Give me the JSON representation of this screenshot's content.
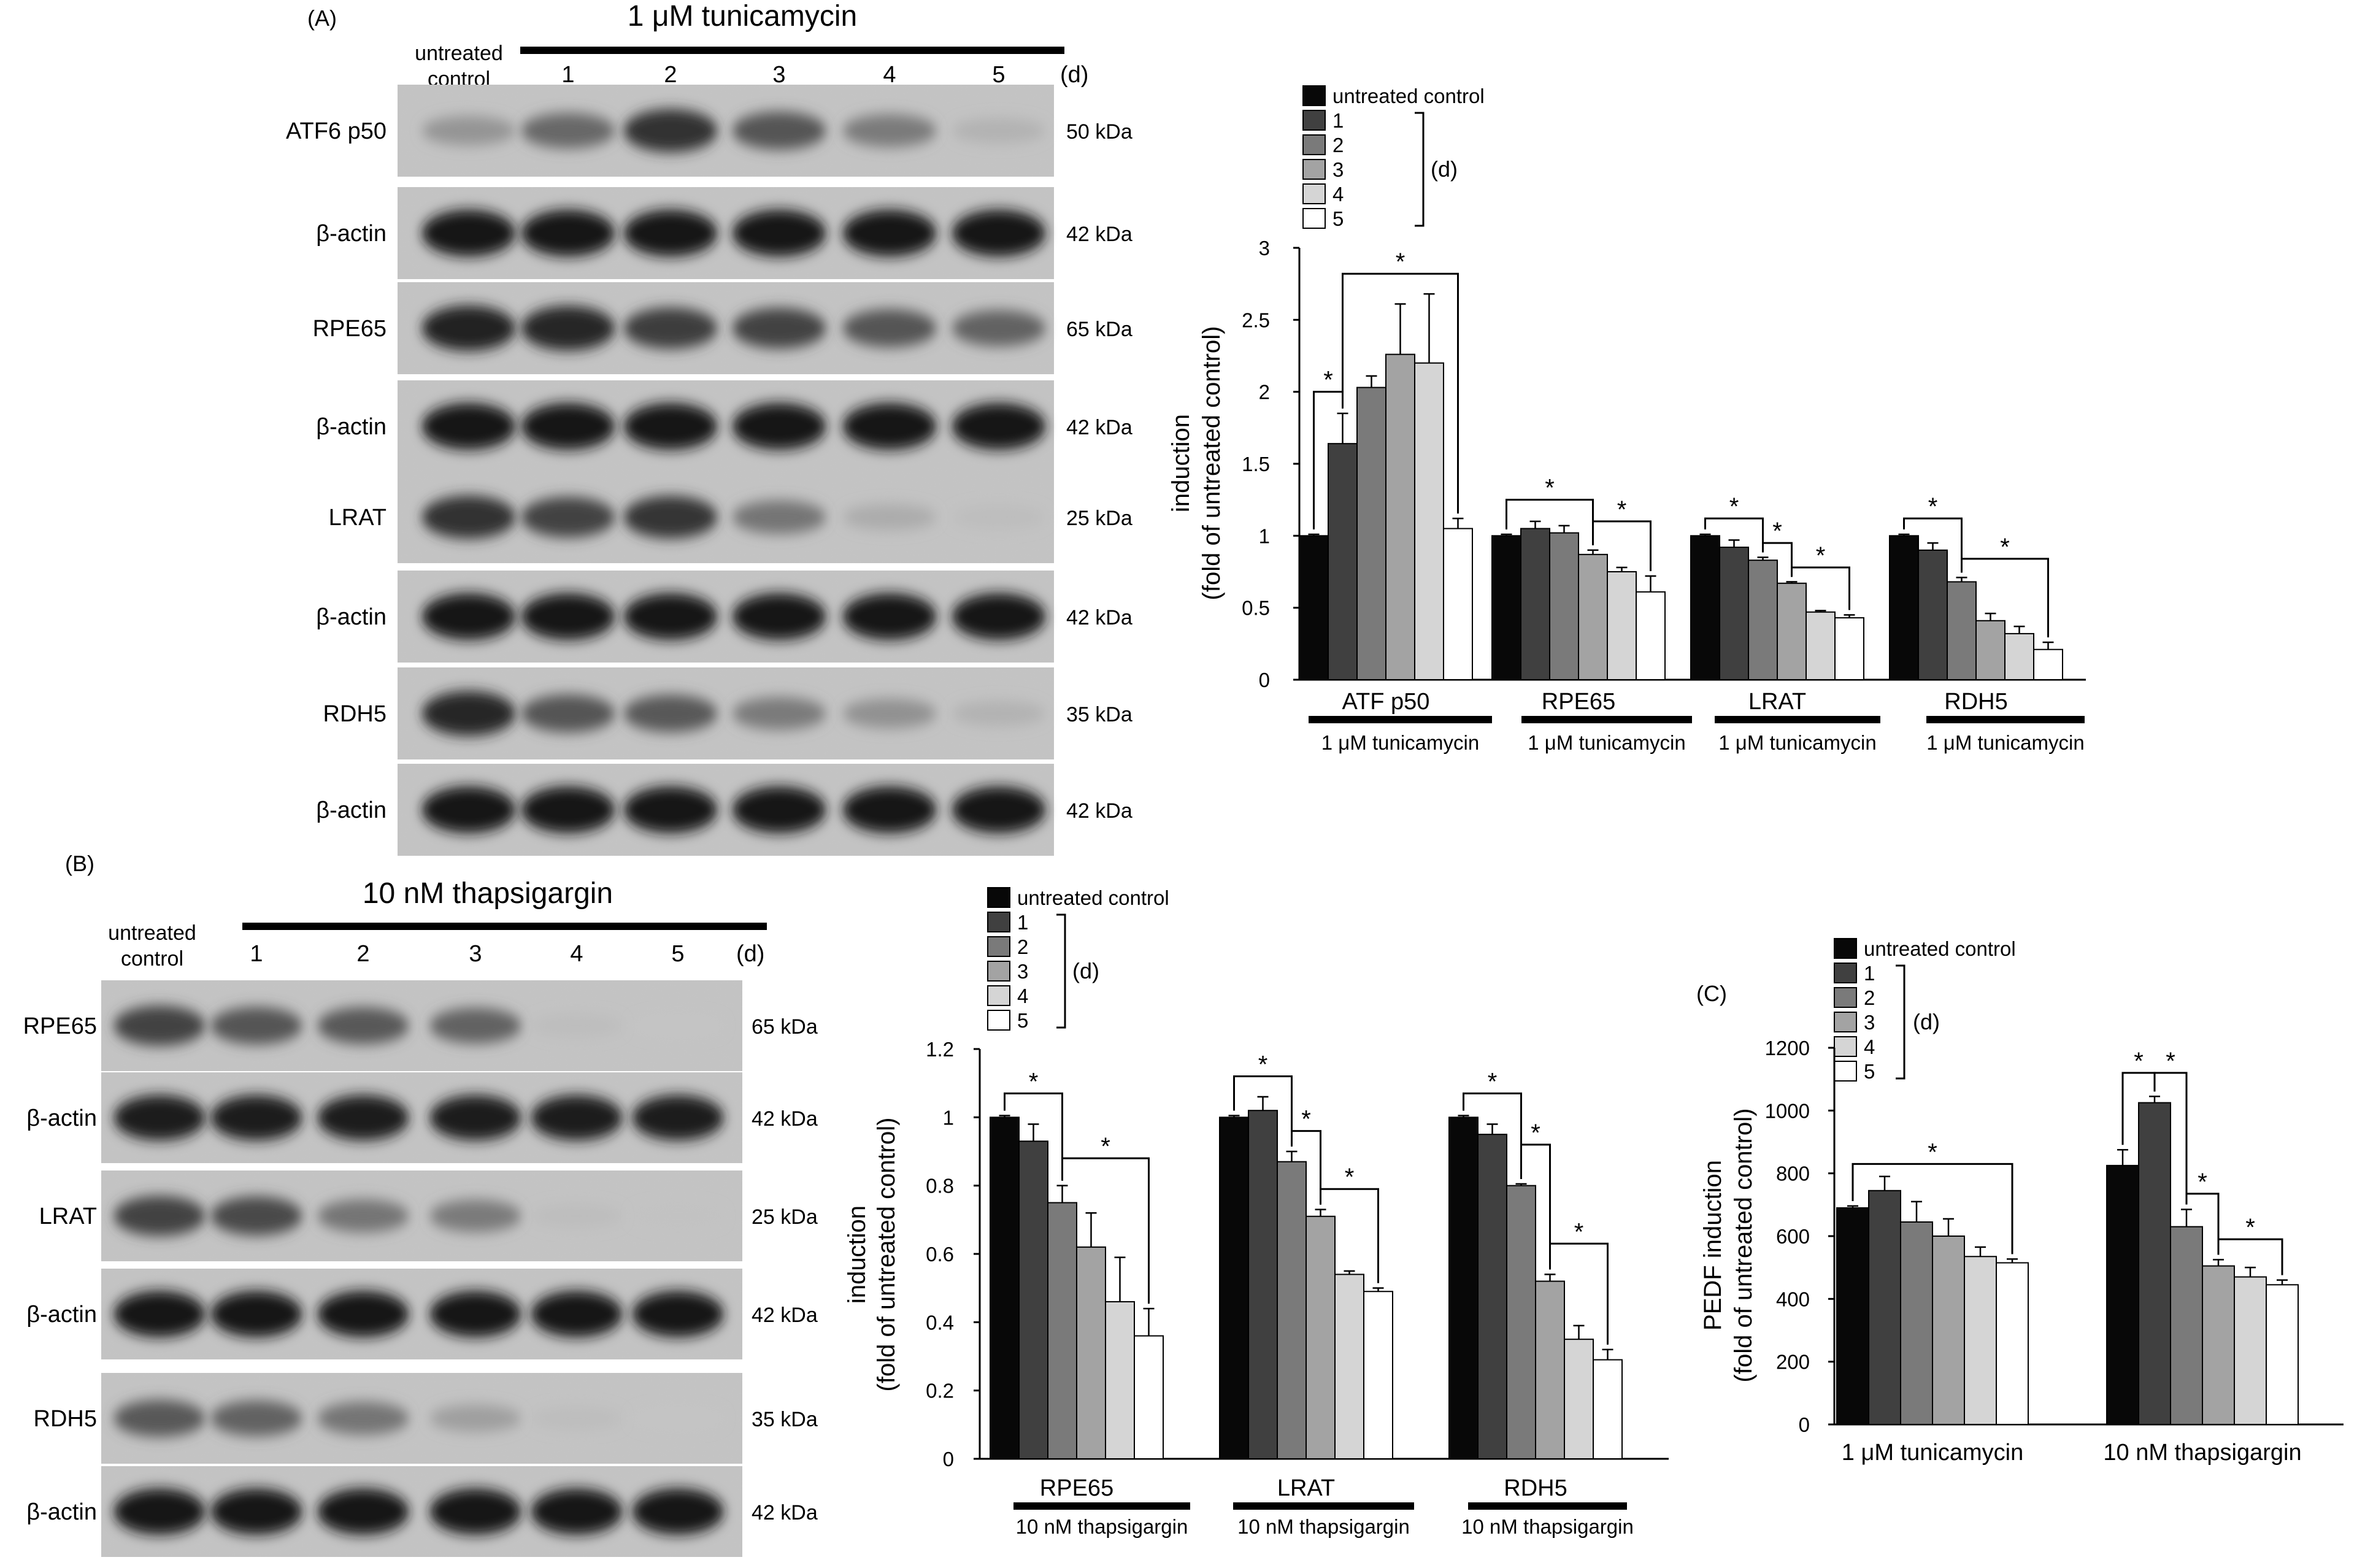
{
  "colors": {
    "untreated control": "#080808",
    "1": "#404040",
    "2": "#7a7a7a",
    "3": "#a3a3a3",
    "4": "#d5d5d5",
    "5": "#ffffff"
  },
  "legend": {
    "items": [
      "untreated control",
      "1",
      "2",
      "3",
      "4",
      "5"
    ],
    "days_unit": "(d)"
  },
  "blots": [
    {
      "id": "A",
      "panel_label": "(A)",
      "treatment": "1 μM tunicamycin",
      "control_label": [
        "untreated",
        "control"
      ],
      "lanes": [
        "1",
        "2",
        "3",
        "4",
        "5"
      ],
      "days_unit": "(d)",
      "rows": [
        {
          "protein": "ATF6 p50",
          "kda": "50 kDa",
          "intensity": [
            0.28,
            0.52,
            0.82,
            0.62,
            0.42,
            0.12
          ]
        },
        {
          "protein": "β-actin",
          "kda": "42 kDa",
          "intensity": [
            0.95,
            0.95,
            0.95,
            0.95,
            0.95,
            0.95
          ]
        },
        {
          "protein": "RPE65",
          "kda": "65 kDa",
          "intensity": [
            0.9,
            0.88,
            0.75,
            0.72,
            0.62,
            0.55
          ]
        },
        {
          "protein": "β-actin",
          "kda": "42 kDa",
          "intensity": [
            0.95,
            0.95,
            0.95,
            0.95,
            0.95,
            0.95
          ]
        },
        {
          "protein": "LRAT",
          "kda": "25 kDa",
          "intensity": [
            0.82,
            0.72,
            0.8,
            0.45,
            0.15,
            0.06
          ]
        },
        {
          "protein": "β-actin",
          "kda": "42 kDa",
          "intensity": [
            0.95,
            0.95,
            0.95,
            0.95,
            0.95,
            0.95
          ]
        },
        {
          "protein": "RDH5",
          "kda": "35 kDa",
          "intensity": [
            0.88,
            0.62,
            0.6,
            0.42,
            0.3,
            0.12
          ]
        },
        {
          "protein": "β-actin",
          "kda": "42 kDa",
          "intensity": [
            0.95,
            0.95,
            0.95,
            0.95,
            0.95,
            0.95
          ]
        }
      ]
    },
    {
      "id": "B",
      "panel_label": "(B)",
      "treatment": "10 nM thapsigargin",
      "control_label": [
        "untreated",
        "control"
      ],
      "lanes": [
        "1",
        "2",
        "3",
        "4",
        "5"
      ],
      "days_unit": "(d)",
      "rows": [
        {
          "protein": "RPE65",
          "kda": "65 kDa",
          "intensity": [
            0.72,
            0.62,
            0.6,
            0.55,
            0.06,
            0.02
          ]
        },
        {
          "protein": "β-actin",
          "kda": "42 kDa",
          "intensity": [
            0.92,
            0.92,
            0.92,
            0.92,
            0.92,
            0.92
          ]
        },
        {
          "protein": "LRAT",
          "kda": "25 kDa",
          "intensity": [
            0.72,
            0.68,
            0.45,
            0.42,
            0.06,
            0.03
          ]
        },
        {
          "protein": "β-actin",
          "kda": "42 kDa",
          "intensity": [
            0.95,
            0.95,
            0.95,
            0.95,
            0.95,
            0.95
          ]
        },
        {
          "protein": "RDH5",
          "kda": "35 kDa",
          "intensity": [
            0.6,
            0.55,
            0.45,
            0.22,
            0.06,
            0.02
          ]
        },
        {
          "protein": "β-actin",
          "kda": "42 kDa",
          "intensity": [
            0.95,
            0.95,
            0.95,
            0.95,
            0.95,
            0.95
          ]
        }
      ]
    }
  ],
  "chart_data": [
    {
      "id": "A",
      "type": "bar",
      "ylabel": [
        "induction",
        "(fold of untreated control)"
      ],
      "ylim": [
        0,
        3
      ],
      "yticks": [
        0,
        0.5,
        1,
        1.5,
        2,
        2.5,
        3
      ],
      "ytick_labels": [
        "0",
        "0.5",
        "1",
        "1.5",
        "2",
        "2.5",
        "3"
      ],
      "series": [
        "untreated control",
        "1",
        "2",
        "3",
        "4",
        "5"
      ],
      "groups": [
        {
          "label": "ATF p50",
          "sublabel": "1 μM tunicamycin",
          "values": [
            1.0,
            1.64,
            2.03,
            2.26,
            2.2,
            1.05
          ],
          "errors": [
            0.01,
            0.21,
            0.08,
            0.35,
            0.48,
            0.07
          ]
        },
        {
          "label": "RPE65",
          "sublabel": "1 μM tunicamycin",
          "values": [
            1.0,
            1.05,
            1.02,
            0.87,
            0.75,
            0.61
          ],
          "errors": [
            0.01,
            0.05,
            0.05,
            0.03,
            0.03,
            0.11
          ]
        },
        {
          "label": "LRAT",
          "sublabel": "1 μM tunicamycin",
          "values": [
            1.0,
            0.92,
            0.83,
            0.67,
            0.47,
            0.43
          ],
          "errors": [
            0.01,
            0.05,
            0.02,
            0.01,
            0.01,
            0.02
          ]
        },
        {
          "label": "RDH5",
          "sublabel": "1 μM tunicamycin",
          "values": [
            1.0,
            0.9,
            0.68,
            0.41,
            0.32,
            0.21
          ],
          "errors": [
            0.01,
            0.05,
            0.03,
            0.05,
            0.05,
            0.05
          ]
        }
      ],
      "significance": [
        {
          "group": 0,
          "from": 0,
          "to": 1,
          "y": 2.0,
          "label": "*"
        },
        {
          "group": 0,
          "from": 1,
          "to": 5,
          "y": 2.82,
          "label": "*"
        },
        {
          "group": 1,
          "from": 0,
          "to": 3,
          "y": 1.25,
          "label": "*"
        },
        {
          "group": 1,
          "from": 3,
          "to": 5,
          "y": 1.1,
          "label": "*"
        },
        {
          "group": 2,
          "from": 0,
          "to": 2,
          "y": 1.12,
          "label": "*"
        },
        {
          "group": 2,
          "from": 2,
          "to": 3,
          "y": 0.95,
          "label": "*"
        },
        {
          "group": 2,
          "from": 3,
          "to": 5,
          "y": 0.78,
          "label": "*"
        },
        {
          "group": 3,
          "from": 0,
          "to": 2,
          "y": 1.12,
          "label": "*"
        },
        {
          "group": 3,
          "from": 2,
          "to": 5,
          "y": 0.84,
          "label": "*"
        }
      ]
    },
    {
      "id": "B",
      "type": "bar",
      "ylabel": [
        "induction",
        "(fold of untreated control)"
      ],
      "ylim": [
        0,
        1.2
      ],
      "yticks": [
        0,
        0.2,
        0.4,
        0.6,
        0.8,
        1,
        1.2
      ],
      "ytick_labels": [
        "0",
        "0.2",
        "0.4",
        "0.6",
        "0.8",
        "1",
        "1.2"
      ],
      "series": [
        "untreated control",
        "1",
        "2",
        "3",
        "4",
        "5"
      ],
      "groups": [
        {
          "label": "RPE65",
          "sublabel": "10 nM thapsigargin",
          "values": [
            1.0,
            0.93,
            0.75,
            0.62,
            0.46,
            0.36
          ],
          "errors": [
            0.005,
            0.05,
            0.05,
            0.1,
            0.13,
            0.08
          ]
        },
        {
          "label": "LRAT",
          "sublabel": "10 nM thapsigargin",
          "values": [
            1.0,
            1.02,
            0.87,
            0.71,
            0.54,
            0.49
          ],
          "errors": [
            0.005,
            0.04,
            0.03,
            0.02,
            0.01,
            0.01
          ]
        },
        {
          "label": "RDH5",
          "sublabel": "10 nM thapsigargin",
          "values": [
            1.0,
            0.95,
            0.8,
            0.52,
            0.35,
            0.29
          ],
          "errors": [
            0.005,
            0.03,
            0.005,
            0.02,
            0.04,
            0.03
          ]
        }
      ],
      "significance": [
        {
          "group": 0,
          "from": 0,
          "to": 2,
          "y": 1.07,
          "label": "*"
        },
        {
          "group": 0,
          "from": 2,
          "to": 5,
          "y": 0.88,
          "label": "*"
        },
        {
          "group": 1,
          "from": 0,
          "to": 2,
          "y": 1.12,
          "label": "*"
        },
        {
          "group": 1,
          "from": 2,
          "to": 3,
          "y": 0.96,
          "label": "*"
        },
        {
          "group": 1,
          "from": 3,
          "to": 5,
          "y": 0.79,
          "label": "*"
        },
        {
          "group": 2,
          "from": 0,
          "to": 2,
          "y": 1.07,
          "label": "*"
        },
        {
          "group": 2,
          "from": 2,
          "to": 3,
          "y": 0.92,
          "label": "*"
        },
        {
          "group": 2,
          "from": 3,
          "to": 5,
          "y": 0.63,
          "label": "*"
        }
      ]
    },
    {
      "id": "C",
      "type": "bar",
      "panel_label": "(C)",
      "ylabel": [
        "PEDF induction",
        "(fold of untreated control)"
      ],
      "ylim": [
        0,
        1200
      ],
      "yticks": [
        0,
        200,
        400,
        600,
        800,
        1000,
        1200
      ],
      "ytick_labels": [
        "0",
        "200",
        "400",
        "600",
        "800",
        "1000",
        "1200"
      ],
      "series": [
        "untreated control",
        "1",
        "2",
        "3",
        "4",
        "5"
      ],
      "groups": [
        {
          "label": "1 μM tunicamycin",
          "sublabel": "",
          "values": [
            690,
            745,
            645,
            600,
            535,
            515
          ],
          "errors": [
            6,
            45,
            65,
            55,
            30,
            12
          ]
        },
        {
          "label": "10 nM thapsigargin",
          "sublabel": "",
          "values": [
            825,
            1025,
            630,
            505,
            470,
            445
          ],
          "errors": [
            50,
            20,
            55,
            20,
            30,
            15
          ]
        }
      ],
      "significance": [
        {
          "group": 0,
          "from": 0,
          "to": 5,
          "y": 830,
          "label": "*"
        },
        {
          "group": 1,
          "from": 0,
          "to": 1,
          "y": 1120,
          "label": "*"
        },
        {
          "group": 1,
          "from": 1,
          "to": 2,
          "y": 1120,
          "label": "*"
        },
        {
          "group": 1,
          "from": 2,
          "to": 3,
          "y": 735,
          "label": "*"
        },
        {
          "group": 1,
          "from": 3,
          "to": 5,
          "y": 590,
          "label": "*"
        }
      ]
    }
  ]
}
